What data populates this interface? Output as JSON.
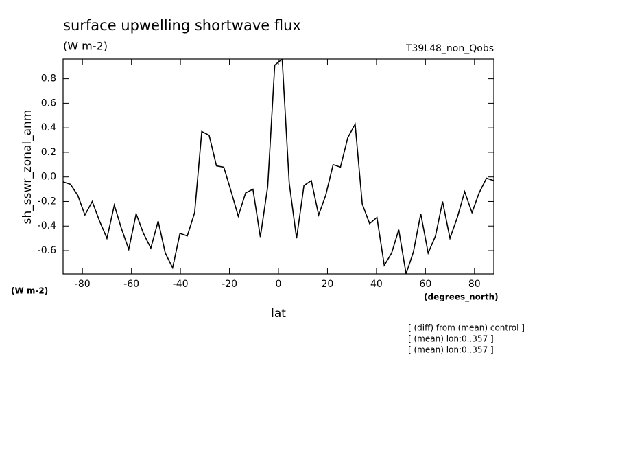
{
  "chart_data": {
    "type": "line",
    "title": "surface upwelling shortwave flux",
    "subtitle": "(W m-2)",
    "annotation": "T39L48_non_Qobs",
    "y_label": "sh_sswr_zonal_anm",
    "y_units": "(W m-2)",
    "x_label": "lat",
    "x_units": "(degrees_north)",
    "notes": [
      "[ (diff) from (mean) control ]",
      "[ (mean) lon:0..357 ]",
      "[ (mean) lon:0..357 ]"
    ],
    "x": [
      -87.9,
      -84.9,
      -81.9,
      -79.0,
      -76.0,
      -73.0,
      -70.0,
      -67.0,
      -64.1,
      -61.1,
      -58.1,
      -55.1,
      -52.1,
      -49.1,
      -46.2,
      -43.2,
      -40.2,
      -37.2,
      -34.2,
      -31.3,
      -28.3,
      -25.3,
      -22.3,
      -19.3,
      -16.4,
      -13.4,
      -10.4,
      -7.4,
      -4.4,
      -1.5,
      1.5,
      4.4,
      7.4,
      10.4,
      13.4,
      16.4,
      19.3,
      22.3,
      25.3,
      28.3,
      31.3,
      34.2,
      37.2,
      40.2,
      43.2,
      46.2,
      49.1,
      52.1,
      55.1,
      58.1,
      61.1,
      64.1,
      67.0,
      70.0,
      73.0,
      76.0,
      79.0,
      81.9,
      84.9,
      87.9
    ],
    "series": [
      {
        "name": "sh_sswr_zonal_anm",
        "color": "#000000",
        "values": [
          -0.04,
          -0.06,
          -0.15,
          -0.31,
          -0.2,
          -0.36,
          -0.5,
          -0.23,
          -0.42,
          -0.59,
          -0.3,
          -0.46,
          -0.58,
          -0.36,
          -0.62,
          -0.74,
          -0.46,
          -0.48,
          -0.29,
          0.37,
          0.34,
          0.09,
          0.08,
          -0.12,
          -0.32,
          -0.13,
          -0.1,
          -0.49,
          -0.08,
          0.91,
          0.96,
          -0.05,
          -0.5,
          -0.07,
          -0.03,
          -0.31,
          -0.15,
          0.1,
          0.08,
          0.32,
          0.43,
          -0.22,
          -0.38,
          -0.33,
          -0.72,
          -0.62,
          -0.43,
          -0.79,
          -0.61,
          -0.3,
          -0.62,
          -0.48,
          -0.2,
          -0.5,
          -0.33,
          -0.12,
          -0.29,
          -0.13,
          -0.01,
          -0.03
        ]
      }
    ],
    "xlim": [
      -87.9,
      87.9
    ],
    "xticks": [
      -80,
      -60,
      -40,
      -20,
      0,
      20,
      40,
      60,
      80
    ],
    "ylim": [
      -0.79,
      0.96
    ],
    "yticks": [
      -0.6,
      -0.4,
      -0.2,
      {
        "value": 0,
        "label": "0.0"
      },
      0.2,
      0.4,
      0.6,
      0.8
    ],
    "grid": false
  }
}
